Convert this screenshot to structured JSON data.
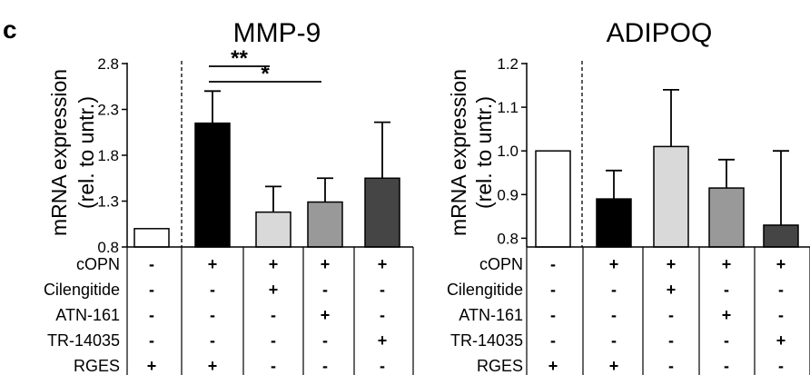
{
  "panel_label": "c",
  "row_labels": [
    "cOPN",
    "Cilengitide",
    "ATN-161",
    "TR-14035",
    "RGES"
  ],
  "chart_data": [
    {
      "type": "bar",
      "title": "MMP-9",
      "ylabel_line1": "mRNA expression",
      "ylabel_line2": "(rel. to untr.)",
      "ylim": [
        0.8,
        2.8
      ],
      "yticks": [
        "0.8",
        "1.3",
        "1.8",
        "2.3",
        "2.8"
      ],
      "yticks_values": [
        0.8,
        1.3,
        1.8,
        2.3,
        2.8
      ],
      "values": [
        1.0,
        2.15,
        1.18,
        1.29,
        1.55
      ],
      "errors": [
        0.0,
        0.35,
        0.28,
        0.26,
        0.61
      ],
      "colors": [
        "#ffffff",
        "#000000",
        "#d9d9d9",
        "#999999",
        "#454545"
      ],
      "conditions": [
        [
          "-",
          "-",
          "-",
          "-",
          "+"
        ],
        [
          "+",
          "-",
          "-",
          "-",
          "+"
        ],
        [
          "+",
          "+",
          "-",
          "-",
          "-"
        ],
        [
          "+",
          "-",
          "+",
          "-",
          "-"
        ],
        [
          "+",
          "-",
          "-",
          "+",
          "-"
        ]
      ],
      "significance": [
        {
          "from": 1,
          "to": 2,
          "label": "**"
        },
        {
          "from": 1,
          "to": 3,
          "label": "*"
        }
      ]
    },
    {
      "type": "bar",
      "title": "ADIPOQ",
      "ylabel_line1": "mRNA expression",
      "ylabel_line2": "(rel. to untr.)",
      "ylim": [
        0.78,
        1.2
      ],
      "yticks": [
        "0.8",
        "0.9",
        "1.0",
        "1.1",
        "1.2"
      ],
      "yticks_values": [
        0.8,
        0.9,
        1.0,
        1.1,
        1.2
      ],
      "values": [
        1.0,
        0.89,
        1.01,
        0.915,
        0.83
      ],
      "errors": [
        0.0,
        0.065,
        0.13,
        0.065,
        0.17
      ],
      "colors": [
        "#ffffff",
        "#000000",
        "#d9d9d9",
        "#999999",
        "#454545"
      ],
      "conditions": [
        [
          "-",
          "-",
          "-",
          "-",
          "+"
        ],
        [
          "+",
          "-",
          "-",
          "-",
          "+"
        ],
        [
          "+",
          "+",
          "-",
          "-",
          "-"
        ],
        [
          "+",
          "-",
          "+",
          "-",
          "-"
        ],
        [
          "+",
          "-",
          "-",
          "+",
          "-"
        ]
      ],
      "significance": []
    }
  ]
}
